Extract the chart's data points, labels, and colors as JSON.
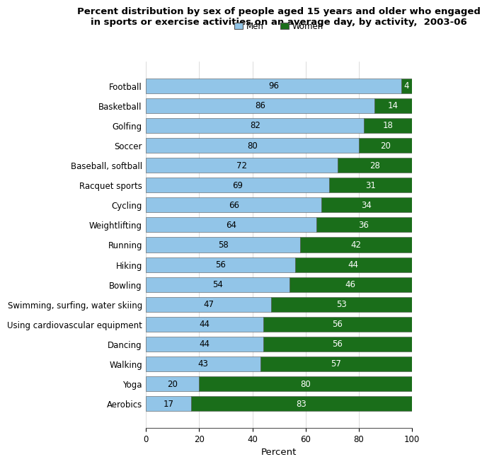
{
  "title_line1": "Percent distribution by sex of people aged 15 years and older who engaged",
  "title_line2": "in sports or exercise activities on an average day, by activity,  2003-06",
  "categories": [
    "Football",
    "Basketball",
    "Golfing",
    "Soccer",
    "Baseball, softball",
    "Racquet sports",
    "Cycling",
    "Weightlifting",
    "Running",
    "Hiking",
    "Bowling",
    "Swimming, surfing, water skiing",
    "Using cardiovascular equipment",
    "Dancing",
    "Walking",
    "Yoga",
    "Aerobics"
  ],
  "men_values": [
    96,
    86,
    82,
    80,
    72,
    69,
    66,
    64,
    58,
    56,
    54,
    47,
    44,
    44,
    43,
    20,
    17
  ],
  "women_values": [
    4,
    14,
    18,
    20,
    28,
    31,
    34,
    36,
    42,
    44,
    46,
    53,
    56,
    56,
    57,
    80,
    83
  ],
  "men_color": "#92C5E8",
  "women_color": "#1a6e1a",
  "xlabel": "Percent",
  "legend_men": "Men",
  "legend_women": "Women",
  "xlim": [
    0,
    100
  ],
  "bar_height": 0.75,
  "title_fontsize": 9.5,
  "label_fontsize": 8.5,
  "tick_fontsize": 8.5,
  "xlabel_fontsize": 9.5
}
